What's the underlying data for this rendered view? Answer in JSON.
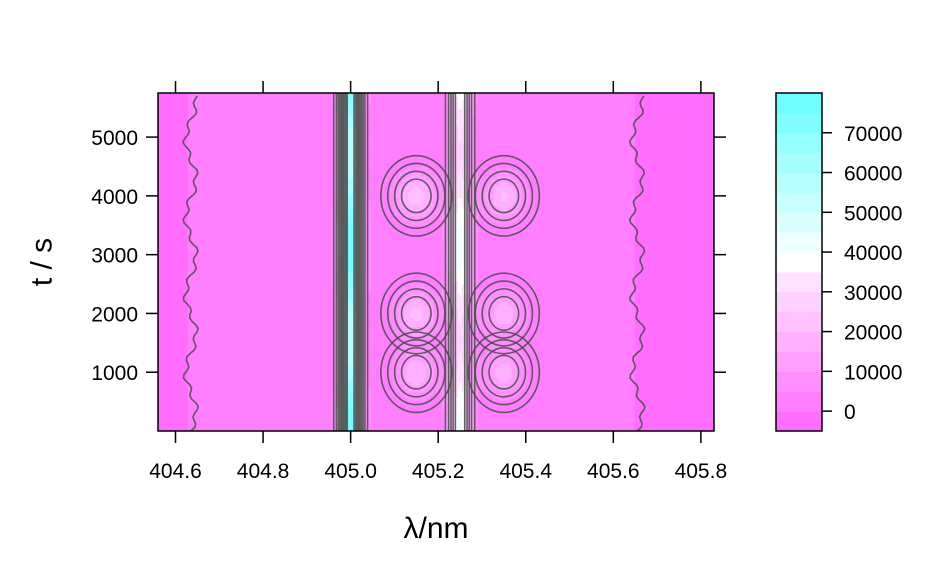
{
  "chart_data": {
    "type": "heatmap",
    "subtype": "filled-contour",
    "xlabel": "λ/nm",
    "ylabel": "t / s",
    "xlim": [
      404.56,
      405.83
    ],
    "ylim": [
      0,
      5750
    ],
    "x_ticks": [
      404.6,
      404.8,
      405.0,
      405.2,
      405.4,
      405.6,
      405.8
    ],
    "x_tick_labels": [
      "404.6",
      "404.8",
      "405.0",
      "405.2",
      "405.4",
      "405.6",
      "405.8"
    ],
    "y_ticks": [
      1000,
      2000,
      3000,
      4000,
      5000
    ],
    "y_tick_labels": [
      "1000",
      "2000",
      "3000",
      "4000",
      "5000"
    ],
    "colorbar": {
      "range": [
        -5000,
        80000
      ],
      "ticks": [
        0,
        10000,
        20000,
        30000,
        40000,
        50000,
        60000,
        70000
      ],
      "tick_labels": [
        "0",
        "10000",
        "20000",
        "30000",
        "40000",
        "50000",
        "60000",
        "70000"
      ],
      "low_color": "#ff66ff",
      "high_color": "#66ffff",
      "level_step": 5000
    },
    "features": [
      {
        "kind": "emission-line",
        "x_center": 405.0,
        "x_halfwidth": 0.025,
        "peak": 78000,
        "t_range": [
          0,
          5750
        ]
      },
      {
        "kind": "emission-line",
        "x_center": 405.25,
        "x_halfwidth": 0.025,
        "peak": 40000,
        "t_range": [
          0,
          5750
        ]
      },
      {
        "kind": "island",
        "x_center": 405.15,
        "t_center": 4000,
        "peak": 22000
      },
      {
        "kind": "island",
        "x_center": 405.15,
        "t_center": 2000,
        "peak": 20000
      },
      {
        "kind": "island",
        "x_center": 405.15,
        "t_center": 1000,
        "peak": 18000
      },
      {
        "kind": "island",
        "x_center": 405.35,
        "t_center": 4000,
        "peak": 19000
      },
      {
        "kind": "island",
        "x_center": 405.35,
        "t_center": 2000,
        "peak": 17000
      },
      {
        "kind": "island",
        "x_center": 405.35,
        "t_center": 1000,
        "peak": 16000
      }
    ],
    "grid": false,
    "legend": "colorbar-right"
  }
}
